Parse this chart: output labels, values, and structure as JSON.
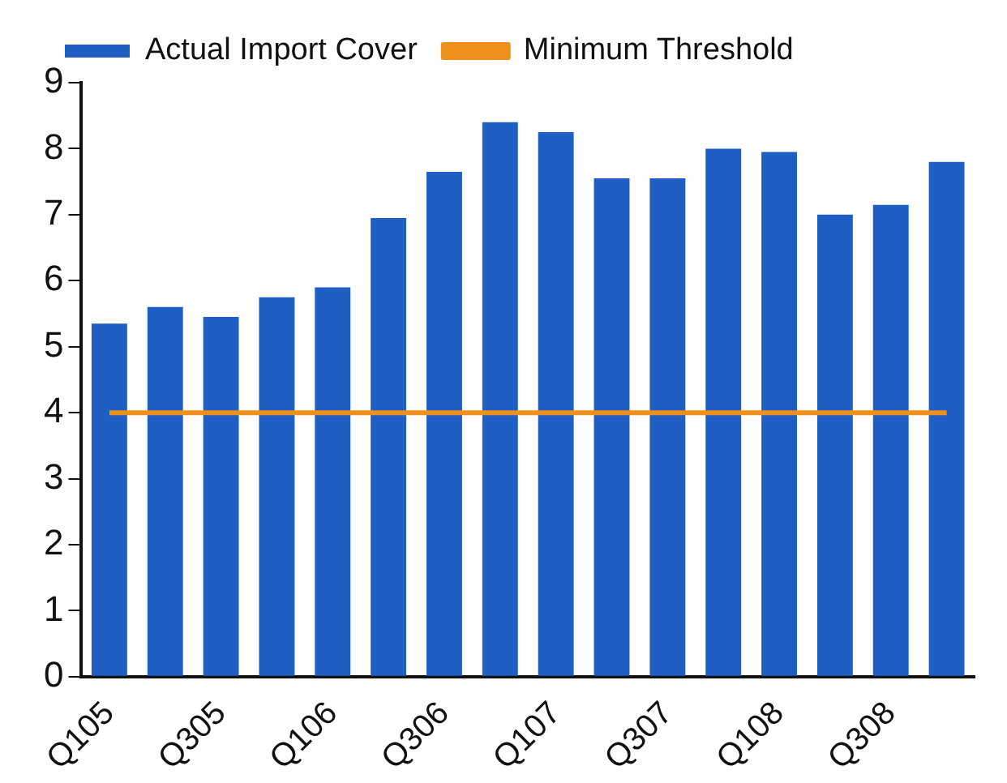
{
  "chart_data": {
    "type": "bar",
    "categories": [
      "Q105",
      null,
      "Q305",
      null,
      "Q106",
      null,
      "Q306",
      null,
      "Q107",
      null,
      "Q307",
      null,
      "Q108",
      null,
      "Q308",
      null
    ],
    "series": [
      {
        "name": "Actual Import Cover",
        "color": "#1f5fc4",
        "values": [
          5.35,
          5.6,
          5.45,
          5.75,
          5.9,
          6.95,
          7.65,
          8.4,
          8.25,
          7.55,
          7.55,
          8.0,
          7.95,
          7.0,
          7.15,
          7.8
        ]
      },
      {
        "name": "Minimum Threshold",
        "type": "line",
        "color": "#f0901c",
        "values": [
          4,
          4,
          4,
          4,
          4,
          4,
          4,
          4,
          4,
          4,
          4,
          4,
          4,
          4,
          4,
          4
        ]
      }
    ],
    "ylim": [
      0,
      9
    ],
    "yticks": [
      0,
      1,
      2,
      3,
      4,
      5,
      6,
      7,
      8,
      9
    ],
    "grid": false,
    "legend": "top left",
    "marker": "none"
  }
}
